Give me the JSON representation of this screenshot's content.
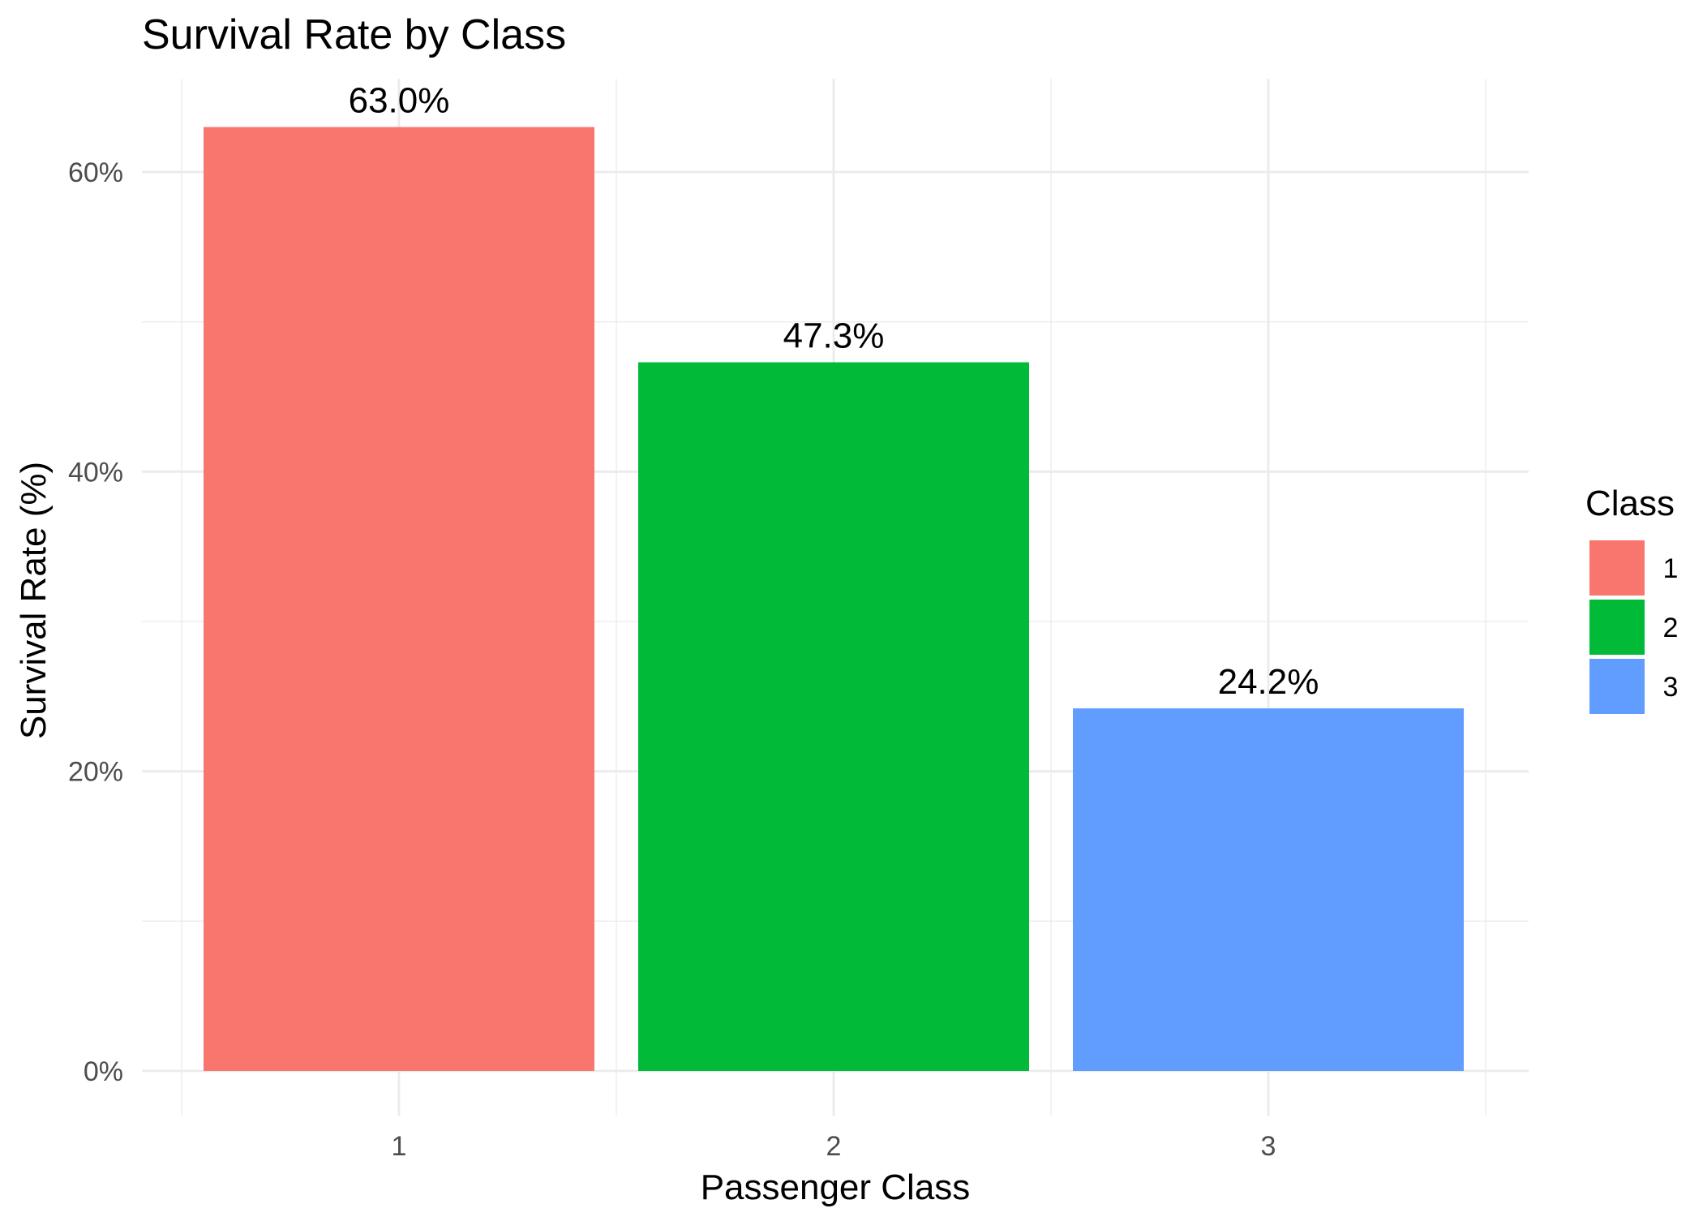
{
  "chart_data": {
    "type": "bar",
    "title": "Survival Rate by Class",
    "xlabel": "Passenger Class",
    "ylabel": "Survival Rate (%)",
    "categories": [
      "1",
      "2",
      "3"
    ],
    "values": [
      63.0,
      47.3,
      24.2
    ],
    "value_labels": [
      "63.0%",
      "47.3%",
      "24.2%"
    ],
    "ylim": [
      0,
      65
    ],
    "yticks": [
      0,
      20,
      40,
      60
    ],
    "ytick_labels": [
      "0%",
      "20%",
      "40%",
      "60%"
    ],
    "grid": true,
    "legend": {
      "title": "Class",
      "placement": "right",
      "entries": [
        "1",
        "2",
        "3"
      ]
    },
    "colors": [
      "#F8766D",
      "#00BA38",
      "#619CFF"
    ]
  }
}
